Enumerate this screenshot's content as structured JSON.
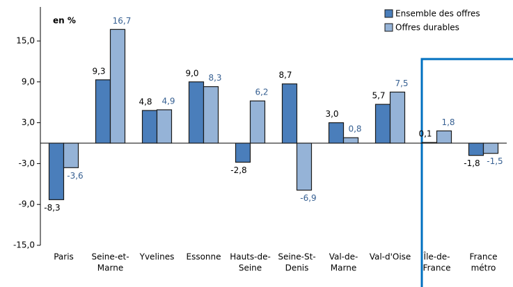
{
  "chart_data": {
    "type": "bar",
    "annotation": "en %",
    "categories": [
      [
        "Paris"
      ],
      [
        "Seine-et-",
        "Marne"
      ],
      [
        "Yvelines"
      ],
      [
        "Essonne"
      ],
      [
        "Hauts-de-",
        "Seine"
      ],
      [
        "Seine-St-",
        "Denis"
      ],
      [
        "Val-de-",
        "Marne"
      ],
      [
        "Val-d'Oise"
      ],
      [
        "Île-de-",
        "France"
      ],
      [
        "France",
        "métro"
      ]
    ],
    "series": [
      {
        "name": "Ensemble des offres",
        "color": "#4a7ebb",
        "label_color": "#000000",
        "values": [
          -8.3,
          9.3,
          4.8,
          9.0,
          -2.8,
          8.7,
          3.0,
          5.7,
          0.1,
          -1.8
        ],
        "value_labels": [
          "-8,3",
          "9,3",
          "4,8",
          "9,0",
          "-2,8",
          "8,7",
          "3,0",
          "5,7",
          "0,1",
          "-1,8"
        ]
      },
      {
        "name": "Offres durables",
        "color": "#95b3d7",
        "label_color": "#376092",
        "values": [
          -3.6,
          16.7,
          4.9,
          8.3,
          6.2,
          -6.9,
          0.8,
          7.5,
          1.8,
          -1.5
        ],
        "value_labels": [
          "-3,6",
          "16,7",
          "4,9",
          "8,3",
          "6,2",
          "-6,9",
          "0,8",
          "7,5",
          "1,8",
          "-1,5"
        ]
      }
    ],
    "ylim": [
      -15,
      20
    ],
    "yticks": [
      {
        "value": -15,
        "label": "-15,0"
      },
      {
        "value": -9,
        "label": "-9,0"
      },
      {
        "value": -3,
        "label": "-3,0"
      },
      {
        "value": 3,
        "label": "3,0"
      },
      {
        "value": 9,
        "label": "9,0"
      },
      {
        "value": 15,
        "label": "15,0"
      }
    ],
    "legend": "top-right"
  }
}
